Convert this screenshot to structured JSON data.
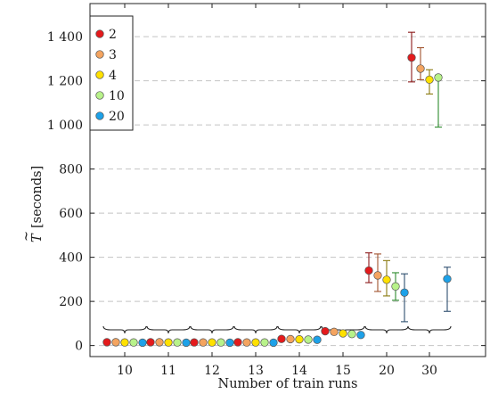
{
  "chart_data": {
    "type": "scatter",
    "xlabel": "Number of train runs",
    "ylabel_main": "T",
    "ylabel_accent": "~",
    "ylabel_unit": "[seconds]",
    "categories": [
      "10",
      "11",
      "12",
      "13",
      "14",
      "15",
      "20",
      "30"
    ],
    "ylim": [
      -50,
      1550
    ],
    "yticks": [
      0,
      200,
      400,
      600,
      800,
      1000,
      1200,
      1400
    ],
    "ytick_labels": [
      "0",
      "200",
      "400",
      "600",
      "800",
      "1 000",
      "1 200",
      "1 400"
    ],
    "grid": "horizontal dashed",
    "legend_position": "top-left",
    "group_braces": true,
    "series": [
      {
        "name": "2",
        "color": "#e41a1c",
        "error_color": "#8b1a1a",
        "points": [
          {
            "category": "10",
            "y": 15
          },
          {
            "category": "11",
            "y": 15
          },
          {
            "category": "12",
            "y": 14
          },
          {
            "category": "13",
            "y": 15
          },
          {
            "category": "14",
            "y": 30
          },
          {
            "category": "15",
            "y": 65
          },
          {
            "category": "20",
            "y": 340,
            "err_low": 285,
            "err_high": 420
          },
          {
            "category": "30",
            "y": 1305,
            "err_low": 1195,
            "err_high": 1420
          }
        ]
      },
      {
        "name": "3",
        "color": "#f4a460",
        "error_color": "#a0522d",
        "points": [
          {
            "category": "10",
            "y": 15
          },
          {
            "category": "11",
            "y": 15
          },
          {
            "category": "12",
            "y": 14
          },
          {
            "category": "13",
            "y": 14
          },
          {
            "category": "14",
            "y": 29
          },
          {
            "category": "15",
            "y": 62
          },
          {
            "category": "20",
            "y": 318,
            "err_low": 245,
            "err_high": 415
          },
          {
            "category": "30",
            "y": 1255,
            "err_low": 1205,
            "err_high": 1350
          }
        ]
      },
      {
        "name": "4",
        "color": "#ffe100",
        "error_color": "#8a7a10",
        "points": [
          {
            "category": "10",
            "y": 14
          },
          {
            "category": "11",
            "y": 14
          },
          {
            "category": "12",
            "y": 14
          },
          {
            "category": "13",
            "y": 14
          },
          {
            "category": "14",
            "y": 28
          },
          {
            "category": "15",
            "y": 55
          },
          {
            "category": "20",
            "y": 298,
            "err_low": 225,
            "err_high": 385
          },
          {
            "category": "30",
            "y": 1205,
            "err_low": 1140,
            "err_high": 1250
          }
        ]
      },
      {
        "name": "10",
        "color": "#b8f28a",
        "error_color": "#2e8b2e",
        "points": [
          {
            "category": "10",
            "y": 14
          },
          {
            "category": "11",
            "y": 14
          },
          {
            "category": "12",
            "y": 14
          },
          {
            "category": "13",
            "y": 14
          },
          {
            "category": "14",
            "y": 27
          },
          {
            "category": "15",
            "y": 52
          },
          {
            "category": "20",
            "y": 268,
            "err_low": 205,
            "err_high": 330
          },
          {
            "category": "30",
            "y": 1215,
            "err_low": 990,
            "err_high": 1225
          }
        ]
      },
      {
        "name": "20",
        "color": "#1da1e8",
        "error_color": "#2f4f6f",
        "points": [
          {
            "category": "10",
            "y": 13
          },
          {
            "category": "11",
            "y": 13
          },
          {
            "category": "12",
            "y": 13
          },
          {
            "category": "13",
            "y": 13
          },
          {
            "category": "14",
            "y": 26
          },
          {
            "category": "15",
            "y": 48
          },
          {
            "category": "20",
            "y": 240,
            "err_low": 108,
            "err_high": 325
          },
          {
            "category": "30",
            "y": 302,
            "err_low": 155,
            "err_high": 355
          }
        ]
      }
    ]
  }
}
